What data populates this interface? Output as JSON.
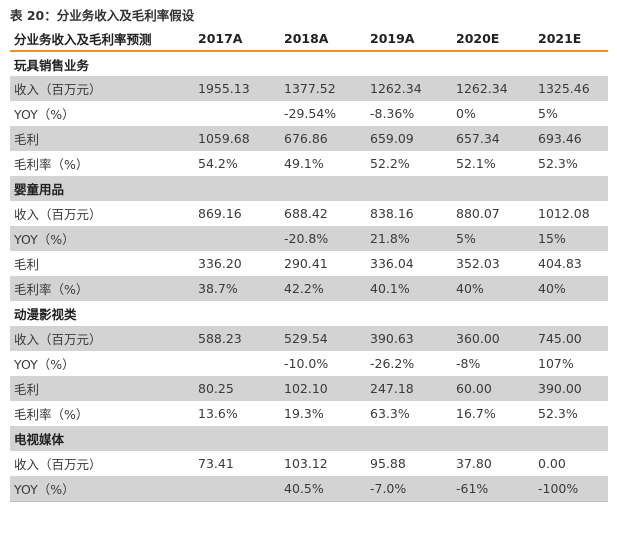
{
  "caption": "表 20：分业务收入及毛利率假设",
  "header": [
    "分业务收入及毛利率预测",
    "2017A",
    "2018A",
    "2019A",
    "2020E",
    "2021E"
  ],
  "sections": [
    {
      "title": "玩具销售业务",
      "rows": [
        {
          "label": "收入（百万元）",
          "values": [
            "1955.13",
            "1377.52",
            "1262.34",
            "1262.34",
            "1325.46"
          ]
        },
        {
          "label": "YOY（%）",
          "values": [
            "",
            "-29.54%",
            "-8.36%",
            "0%",
            "5%"
          ]
        },
        {
          "label": "毛利",
          "values": [
            "1059.68",
            "676.86",
            "659.09",
            "657.34",
            "693.46"
          ]
        },
        {
          "label": "毛利率（%）",
          "values": [
            "54.2%",
            "49.1%",
            "52.2%",
            "52.1%",
            "52.3%"
          ]
        }
      ]
    },
    {
      "title": "婴童用品",
      "rows": [
        {
          "label": "收入（百万元）",
          "values": [
            "869.16",
            "688.42",
            "838.16",
            "880.07",
            "1012.08"
          ]
        },
        {
          "label": "YOY（%）",
          "values": [
            "",
            "-20.8%",
            "21.8%",
            "5%",
            "15%"
          ]
        },
        {
          "label": "毛利",
          "values": [
            "336.20",
            "290.41",
            "336.04",
            "352.03",
            "404.83"
          ]
        },
        {
          "label": "毛利率（%）",
          "values": [
            "38.7%",
            "42.2%",
            "40.1%",
            "40%",
            "40%"
          ]
        }
      ]
    },
    {
      "title": "动漫影视类",
      "rows": [
        {
          "label": "收入（百万元）",
          "values": [
            "588.23",
            "529.54",
            "390.63",
            "360.00",
            "745.00"
          ]
        },
        {
          "label": "YOY（%）",
          "values": [
            "",
            "-10.0%",
            "-26.2%",
            "-8%",
            "107%"
          ]
        },
        {
          "label": "毛利",
          "values": [
            "80.25",
            "102.10",
            "247.18",
            "60.00",
            "390.00"
          ]
        },
        {
          "label": "毛利率（%）",
          "values": [
            "13.6%",
            "19.3%",
            "63.3%",
            "16.7%",
            "52.3%"
          ]
        }
      ]
    },
    {
      "title": "电视媒体",
      "rows": [
        {
          "label": "收入（百万元）",
          "values": [
            "73.41",
            "103.12",
            "95.88",
            "37.80",
            "0.00"
          ]
        },
        {
          "label": "YOY（%）",
          "values": [
            "",
            "40.5%",
            "-7.0%",
            "-61%",
            "-100%"
          ]
        }
      ]
    }
  ],
  "colors": {
    "accent": "#e8912a",
    "row_shade": "#d3d3d3"
  }
}
